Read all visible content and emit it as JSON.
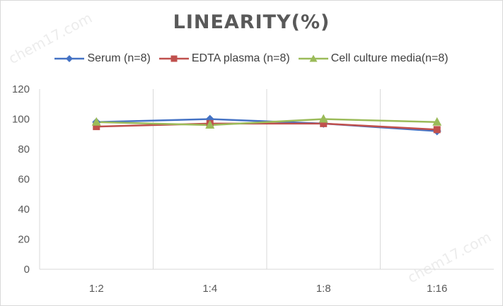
{
  "watermark": "chem17.com",
  "chart_data": {
    "type": "line",
    "title": "LINEARITY(%)",
    "categories": [
      "1:2",
      "1:4",
      "1:8",
      "1:16"
    ],
    "ylim": [
      0,
      120
    ],
    "yticks": [
      "0",
      "20",
      "40",
      "60",
      "80",
      "100",
      "120"
    ],
    "grid": "vertical",
    "legend_position": "top",
    "series": [
      {
        "name": "Serum (n=8)",
        "values": [
          98,
          100,
          97,
          92
        ],
        "color": "#4472c4",
        "marker": "diamond"
      },
      {
        "name": "EDTA plasma (n=8)",
        "values": [
          95,
          97,
          97,
          93
        ],
        "color": "#c0504d",
        "marker": "square"
      },
      {
        "name": "Cell culture media(n=8)",
        "values": [
          98,
          96,
          100,
          98
        ],
        "color": "#9bbb59",
        "marker": "triangle"
      }
    ]
  }
}
